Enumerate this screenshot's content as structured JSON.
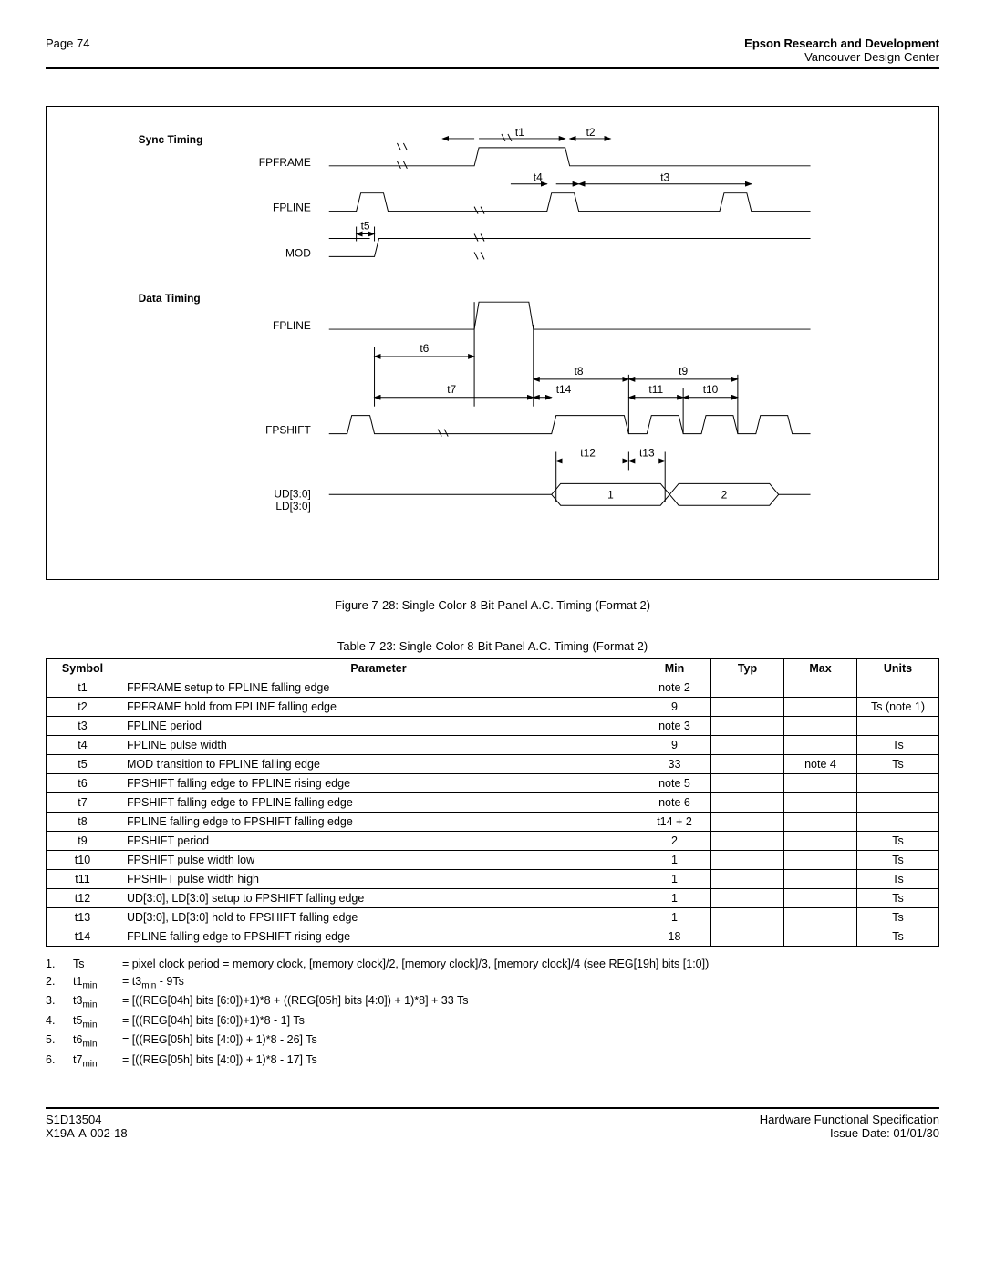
{
  "header": {
    "page_label": "Page 74",
    "org_bold": "Epson Research and Development",
    "org_sub": "Vancouver Design Center"
  },
  "diagram": {
    "heading_sync": "Sync Timing",
    "heading_data": "Data Timing",
    "sig_fpframe": "FPFRAME",
    "sig_fpline": "FPLINE",
    "sig_mod": "MOD",
    "sig_fpshift": "FPSHIFT",
    "sig_udld": "UD[3:0]\nLD[3:0]",
    "t1": "t1",
    "t2": "t2",
    "t3": "t3",
    "t4": "t4",
    "t5": "t5",
    "t6": "t6",
    "t7": "t7",
    "t8": "t8",
    "t9": "t9",
    "t10": "t10",
    "t11": "t11",
    "t12": "t12",
    "t13": "t13",
    "t14": "t14",
    "d1": "1",
    "d2": "2",
    "stroke_color": "#000000",
    "stroke_width": 1
  },
  "figure_caption": "Figure 7-28: Single Color 8-Bit Panel A.C. Timing (Format 2)",
  "table_caption": "Table 7-23: Single Color 8-Bit Panel A.C. Timing (Format 2)",
  "table": {
    "headers": [
      "Symbol",
      "Parameter",
      "Min",
      "Typ",
      "Max",
      "Units"
    ],
    "rows": [
      [
        "t1",
        "FPFRAME setup to FPLINE falling edge",
        "note 2",
        "",
        "",
        ""
      ],
      [
        "t2",
        "FPFRAME hold from FPLINE falling edge",
        "9",
        "",
        "",
        "Ts (note 1)"
      ],
      [
        "t3",
        "FPLINE period",
        "note 3",
        "",
        "",
        ""
      ],
      [
        "t4",
        "FPLINE pulse width",
        "9",
        "",
        "",
        "Ts"
      ],
      [
        "t5",
        "MOD transition to FPLINE falling edge",
        "33",
        "",
        "note 4",
        "Ts"
      ],
      [
        "t6",
        "FPSHIFT falling edge to FPLINE rising edge",
        "note 5",
        "",
        "",
        ""
      ],
      [
        "t7",
        "FPSHIFT falling edge to FPLINE falling edge",
        "note 6",
        "",
        "",
        ""
      ],
      [
        "t8",
        "FPLINE falling edge to FPSHIFT falling edge",
        "t14 + 2",
        "",
        "",
        ""
      ],
      [
        "t9",
        "FPSHIFT period",
        "2",
        "",
        "",
        "Ts"
      ],
      [
        "t10",
        "FPSHIFT pulse width low",
        "1",
        "",
        "",
        "Ts"
      ],
      [
        "t11",
        "FPSHIFT pulse width high",
        "1",
        "",
        "",
        "Ts"
      ],
      [
        "t12",
        "UD[3:0], LD[3:0] setup to FPSHIFT falling edge",
        "1",
        "",
        "",
        "Ts"
      ],
      [
        "t13",
        "UD[3:0], LD[3:0] hold to FPSHIFT falling edge",
        "1",
        "",
        "",
        "Ts"
      ],
      [
        "t14",
        "FPLINE falling edge to FPSHIFT rising edge",
        "18",
        "",
        "",
        "Ts"
      ]
    ]
  },
  "notes": {
    "n1": {
      "idx": "1.",
      "lbl": "Ts",
      "txt": "= pixel clock period = memory clock, [memory clock]/2, [memory clock]/3, [memory clock]/4 (see REG[19h] bits [1:0])"
    },
    "n2": {
      "idx": "2.",
      "lbl_html": "t1<sub>min</sub>",
      "txt_html": "= t3<sub>min</sub> - 9Ts"
    },
    "n3": {
      "idx": "3.",
      "lbl_html": "t3<sub>min</sub>",
      "txt": "= [((REG[04h] bits [6:0])+1)*8 + ((REG[05h] bits [4:0]) + 1)*8] + 33 Ts"
    },
    "n4": {
      "idx": "4.",
      "lbl_html": "t5<sub>min</sub>",
      "txt": "= [((REG[04h] bits [6:0])+1)*8 - 1] Ts"
    },
    "n5": {
      "idx": "5.",
      "lbl_html": "t6<sub>min</sub>",
      "txt": "= [((REG[05h] bits [4:0]) + 1)*8 - 26] Ts"
    },
    "n6": {
      "idx": "6.",
      "lbl_html": "t7<sub>min</sub>",
      "txt": "= [((REG[05h] bits [4:0]) + 1)*8 - 17] Ts"
    }
  },
  "footer": {
    "left1": "S1D13504",
    "left2": "X19A-A-002-18",
    "right1": "Hardware Functional Specification",
    "right2": "Issue Date: 01/01/30"
  }
}
